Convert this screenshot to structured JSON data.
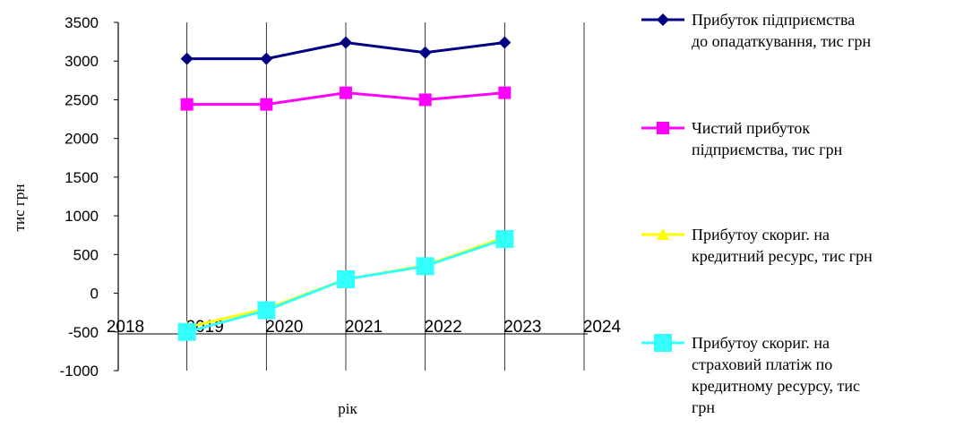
{
  "chart_data": {
    "type": "line",
    "xlabel": "рік",
    "ylabel": "тис грн",
    "xlim": [
      2018,
      2024
    ],
    "ylim": [
      -1000,
      3500
    ],
    "y_ticks": [
      3500,
      3000,
      2500,
      2000,
      1500,
      1000,
      500,
      0,
      -500,
      -1000
    ],
    "x_ticks": [
      2018,
      2019,
      2020,
      2021,
      2022,
      2023,
      2024
    ],
    "vertical_gridlines": true,
    "horizontal_gridlines": false,
    "legend_position": "right",
    "x": [
      2019,
      2020,
      2021,
      2022,
      2023
    ],
    "series": [
      {
        "name": "Прибуток підприємства до опадаткування, тис грн",
        "legend_lines": [
          "Прибуток підприємства",
          "до опадаткування, тис грн"
        ],
        "values": [
          3030,
          3030,
          3240,
          3110,
          3240
        ],
        "color": "#000080",
        "marker": "diamond"
      },
      {
        "name": "Чистий прибуток підприємства, тис грн",
        "legend_lines": [
          "Чистий прибуток",
          "підприємства, тис грн"
        ],
        "values": [
          2440,
          2440,
          2590,
          2500,
          2590
        ],
        "color": "#FF00FF",
        "marker": "square"
      },
      {
        "name": "Прибутоу скориг. на кредитний ресурс, тис грн",
        "legend_lines": [
          "Прибутоу скориг. на",
          "кредитний ресурс, тис грн"
        ],
        "values": [
          -440,
          -200,
          180,
          360,
          720
        ],
        "color": "#FFFF00",
        "marker": "triangle"
      },
      {
        "name": "Прибутоу скориг. на страховий платіж по кредитному ресурсу, тис грн",
        "legend_lines": [
          "Прибутоу скориг. на",
          "страховий платіж по",
          "кредитному ресурсу, тис",
          "грн"
        ],
        "values": [
          -500,
          -220,
          180,
          350,
          700
        ],
        "color": "#33FFFF",
        "marker": "square-large"
      }
    ]
  }
}
